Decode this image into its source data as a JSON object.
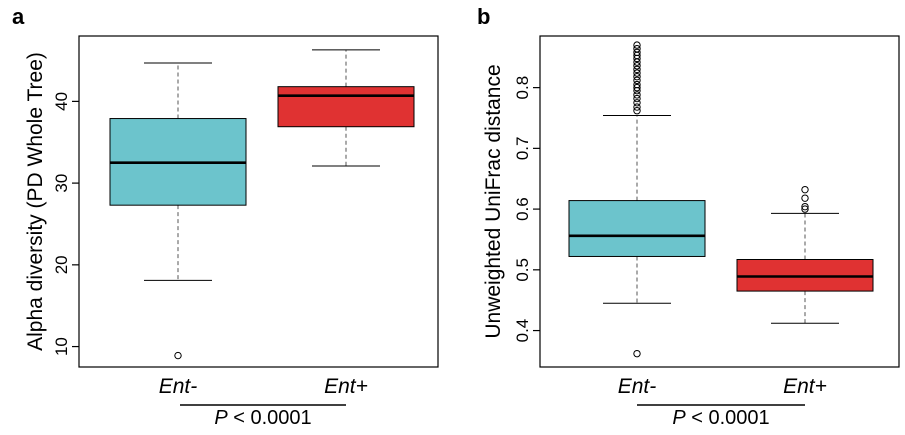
{
  "colors": {
    "ent_minus": "#6cc4cc",
    "ent_plus": "#e03232"
  },
  "chart_data": [
    {
      "type": "box",
      "panel_label": "a",
      "ylabel": "Alpha diversity (PD Whole Tree)",
      "categories": [
        "Ent-",
        "Ent+"
      ],
      "ylim": [
        7.5,
        48
      ],
      "yticks": [
        10,
        20,
        30,
        40
      ],
      "boxes": [
        {
          "category": "Ent-",
          "whisker_low": 18.1,
          "q1": 27.3,
          "median": 32.5,
          "q3": 37.9,
          "whisker_high": 44.7,
          "outliers": [
            8.9
          ]
        },
        {
          "category": "Ent+",
          "whisker_low": 32.1,
          "q1": 36.9,
          "median": 40.7,
          "q3": 41.8,
          "whisker_high": 46.3,
          "outliers": []
        }
      ],
      "annotation": {
        "p_label": "P",
        "p_text": " < 0.0001"
      }
    },
    {
      "type": "box",
      "panel_label": "b",
      "ylabel": "Unweighted UniFrac distance",
      "categories": [
        "Ent-",
        "Ent+"
      ],
      "ylim": [
        0.34,
        0.885
      ],
      "yticks": [
        0.4,
        0.5,
        0.6,
        0.7,
        0.8
      ],
      "boxes": [
        {
          "category": "Ent-",
          "whisker_low": 0.445,
          "q1": 0.522,
          "median": 0.556,
          "q3": 0.614,
          "whisker_high": 0.754,
          "outliers": [
            0.362,
            0.762,
            0.768,
            0.775,
            0.782,
            0.788,
            0.795,
            0.8,
            0.805,
            0.812,
            0.818,
            0.824,
            0.83,
            0.836,
            0.842,
            0.848,
            0.853,
            0.858,
            0.864,
            0.87
          ]
        },
        {
          "category": "Ent+",
          "whisker_low": 0.412,
          "q1": 0.465,
          "median": 0.489,
          "q3": 0.517,
          "whisker_high": 0.593,
          "outliers": [
            0.6,
            0.604,
            0.618,
            0.632
          ]
        }
      ],
      "annotation": {
        "p_label": "P",
        "p_text": " < 0.0001"
      }
    }
  ]
}
